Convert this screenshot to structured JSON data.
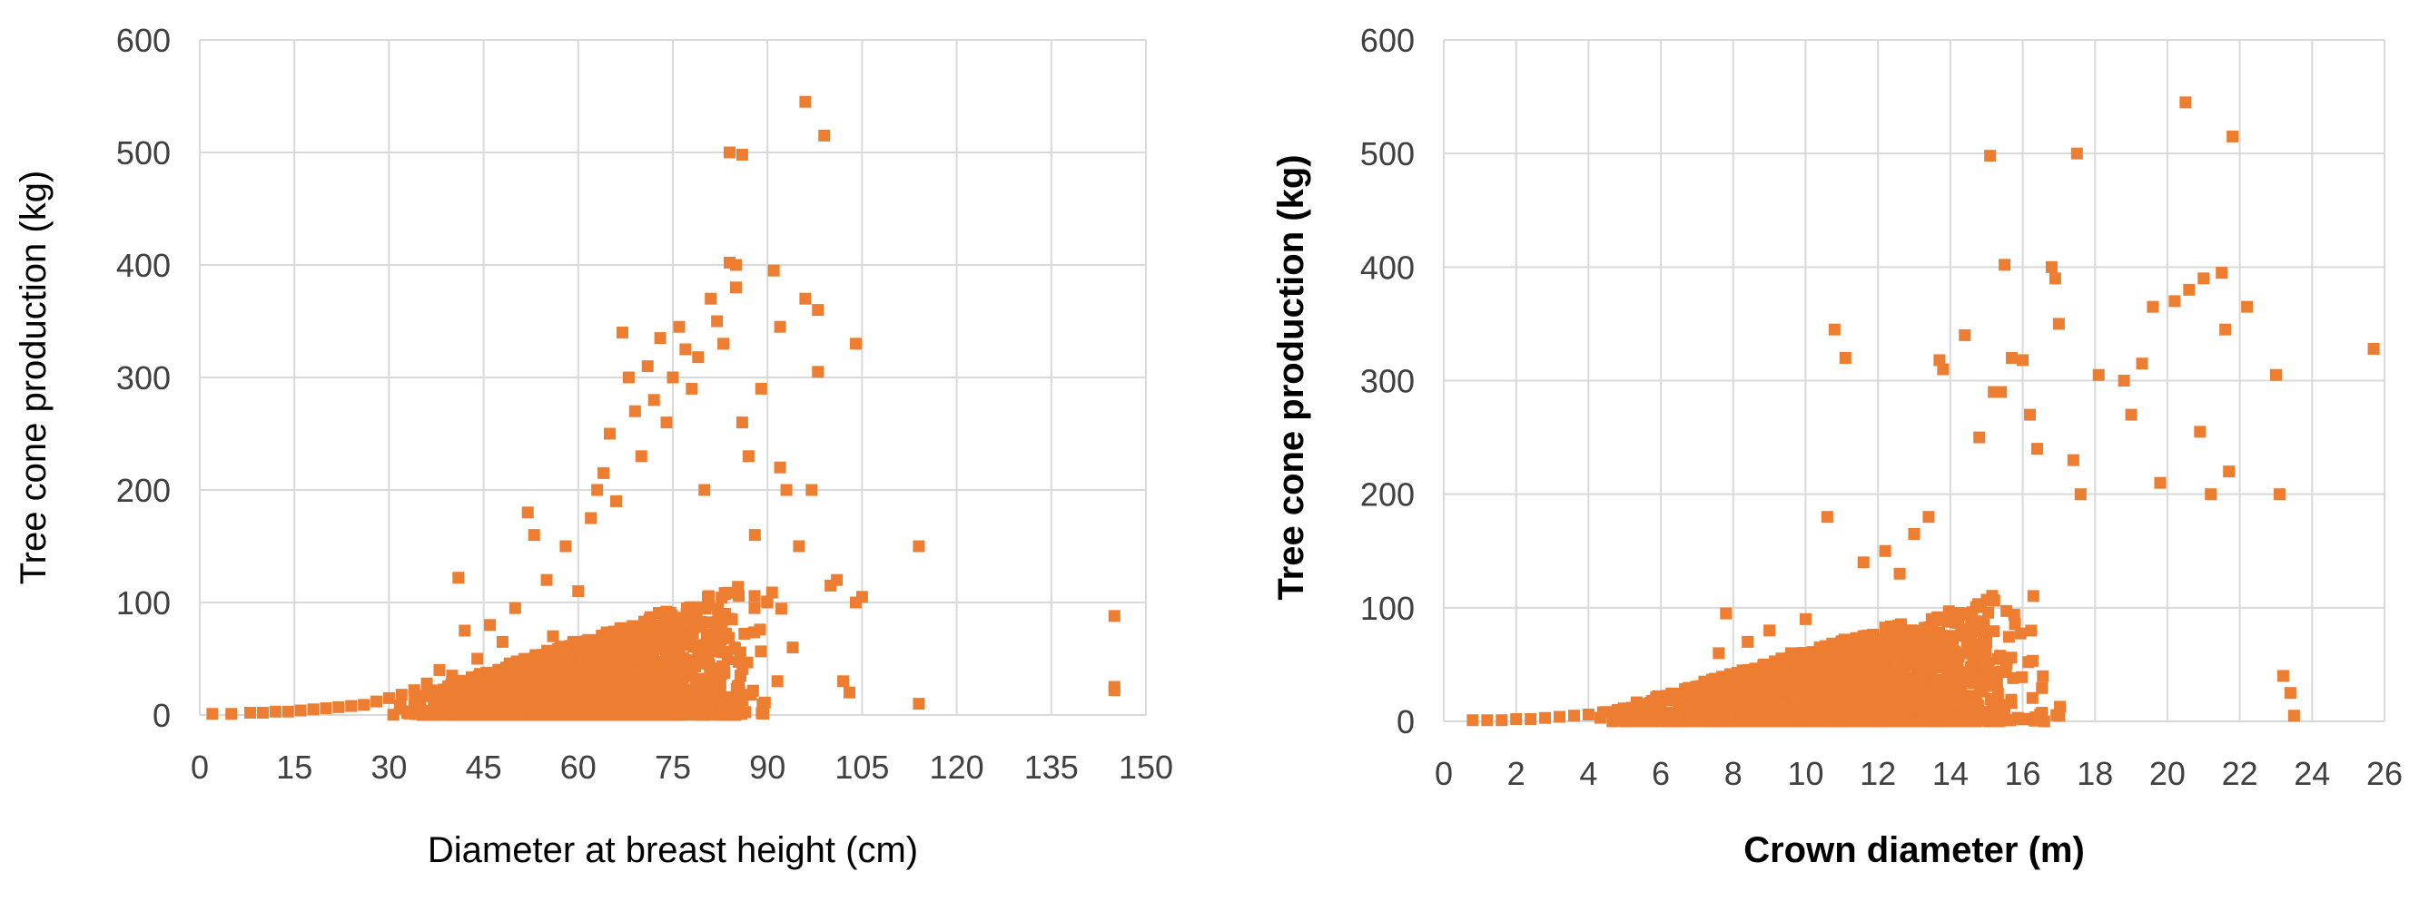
{
  "chart_data": [
    {
      "type": "scatter",
      "xlabel": "Diameter at breast height (cm)",
      "ylabel": "Tree cone production (kg)",
      "xlim": [
        0,
        150
      ],
      "ylim": [
        0,
        600
      ],
      "xticks": [
        "0",
        "15",
        "30",
        "45",
        "60",
        "75",
        "90",
        "105",
        "120",
        "135",
        "150"
      ],
      "yticks": [
        "0",
        "100",
        "200",
        "300",
        "400",
        "500",
        "600"
      ],
      "grid": true,
      "marker_color": "#ED7D31",
      "series": [
        {
          "points": [
            [
              2,
              1
            ],
            [
              5,
              1
            ],
            [
              8,
              2
            ],
            [
              10,
              2
            ],
            [
              12,
              3
            ],
            [
              14,
              3
            ],
            [
              16,
              4
            ],
            [
              18,
              5
            ],
            [
              20,
              6
            ],
            [
              22,
              7
            ],
            [
              24,
              8
            ],
            [
              26,
              9
            ],
            [
              28,
              12
            ],
            [
              30,
              15
            ],
            [
              32,
              18
            ],
            [
              34,
              22
            ],
            [
              36,
              28
            ],
            [
              38,
              40
            ],
            [
              40,
              35
            ],
            [
              41,
              122
            ],
            [
              42,
              75
            ],
            [
              44,
              50
            ],
            [
              46,
              80
            ],
            [
              48,
              65
            ],
            [
              50,
              95
            ],
            [
              52,
              180
            ],
            [
              53,
              160
            ],
            [
              55,
              120
            ],
            [
              56,
              70
            ],
            [
              58,
              150
            ],
            [
              60,
              110
            ],
            [
              62,
              175
            ],
            [
              63,
              200
            ],
            [
              64,
              215
            ],
            [
              65,
              250
            ],
            [
              66,
              190
            ],
            [
              67,
              340
            ],
            [
              68,
              300
            ],
            [
              69,
              270
            ],
            [
              70,
              230
            ],
            [
              71,
              310
            ],
            [
              72,
              280
            ],
            [
              73,
              335
            ],
            [
              74,
              260
            ],
            [
              75,
              300
            ],
            [
              76,
              345
            ],
            [
              77,
              325
            ],
            [
              78,
              290
            ],
            [
              79,
              318
            ],
            [
              80,
              200
            ],
            [
              81,
              370
            ],
            [
              82,
              350
            ],
            [
              83,
              330
            ],
            [
              84,
              402
            ],
            [
              84,
              500
            ],
            [
              85,
              400
            ],
            [
              85,
              380
            ],
            [
              86,
              498
            ],
            [
              86,
              260
            ],
            [
              87,
              230
            ],
            [
              88,
              160
            ],
            [
              89,
              290
            ],
            [
              90,
              100
            ],
            [
              91,
              395
            ],
            [
              92,
              345
            ],
            [
              92,
              220
            ],
            [
              93,
              200
            ],
            [
              94,
              60
            ],
            [
              95,
              150
            ],
            [
              96,
              370
            ],
            [
              96,
              545
            ],
            [
              97,
              200
            ],
            [
              98,
              305
            ],
            [
              98,
              360
            ],
            [
              99,
              515
            ],
            [
              100,
              115
            ],
            [
              101,
              120
            ],
            [
              102,
              30
            ],
            [
              103,
              20
            ],
            [
              104,
              100
            ],
            [
              104,
              330
            ],
            [
              105,
              105
            ],
            [
              114,
              10
            ],
            [
              114,
              150
            ],
            [
              145,
              88
            ],
            [
              145,
              22
            ],
            [
              145,
              25
            ]
          ]
        }
      ]
    },
    {
      "type": "scatter",
      "xlabel": "Crown diameter (m)",
      "ylabel": "Tree cone production (kg)",
      "xlim": [
        0,
        26
      ],
      "ylim": [
        0,
        600
      ],
      "xticks": [
        "0",
        "2",
        "4",
        "6",
        "8",
        "10",
        "12",
        "14",
        "16",
        "18",
        "20",
        "22",
        "24",
        "26"
      ],
      "yticks": [
        "0",
        "100",
        "200",
        "300",
        "400",
        "500",
        "600"
      ],
      "grid": true,
      "marker_color": "#ED7D31",
      "series": [
        {
          "points": [
            [
              0.8,
              1
            ],
            [
              1.2,
              1
            ],
            [
              1.6,
              1
            ],
            [
              2.0,
              2
            ],
            [
              2.4,
              2
            ],
            [
              2.8,
              3
            ],
            [
              3.2,
              4
            ],
            [
              3.6,
              5
            ],
            [
              4.0,
              6
            ],
            [
              4.4,
              8
            ],
            [
              4.8,
              10
            ],
            [
              5.2,
              12
            ],
            [
              5.6,
              14
            ],
            [
              6.0,
              18
            ],
            [
              6.4,
              22
            ],
            [
              6.8,
              28
            ],
            [
              7.2,
              35
            ],
            [
              7.6,
              60
            ],
            [
              7.8,
              95
            ],
            [
              8.4,
              70
            ],
            [
              9.0,
              80
            ],
            [
              9.6,
              60
            ],
            [
              10.0,
              90
            ],
            [
              10.6,
              180
            ],
            [
              10.8,
              345
            ],
            [
              11.1,
              320
            ],
            [
              11.6,
              140
            ],
            [
              12.2,
              150
            ],
            [
              12.6,
              130
            ],
            [
              13.0,
              165
            ],
            [
              13.4,
              180
            ],
            [
              13.7,
              318
            ],
            [
              13.8,
              310
            ],
            [
              14.4,
              340
            ],
            [
              14.8,
              250
            ],
            [
              15.1,
              498
            ],
            [
              15.2,
              290
            ],
            [
              15.4,
              290
            ],
            [
              15.5,
              402
            ],
            [
              15.7,
              320
            ],
            [
              16.0,
              318
            ],
            [
              16.2,
              270
            ],
            [
              16.4,
              240
            ],
            [
              16.8,
              400
            ],
            [
              16.9,
              390
            ],
            [
              17.0,
              350
            ],
            [
              17.4,
              230
            ],
            [
              17.5,
              500
            ],
            [
              17.6,
              200
            ],
            [
              18.1,
              305
            ],
            [
              18.8,
              300
            ],
            [
              19.0,
              270
            ],
            [
              19.3,
              315
            ],
            [
              19.6,
              365
            ],
            [
              19.8,
              210
            ],
            [
              20.2,
              370
            ],
            [
              20.5,
              545
            ],
            [
              20.6,
              380
            ],
            [
              20.9,
              255
            ],
            [
              21.0,
              390
            ],
            [
              21.2,
              200
            ],
            [
              21.5,
              395
            ],
            [
              21.6,
              345
            ],
            [
              21.7,
              220
            ],
            [
              21.8,
              515
            ],
            [
              22.2,
              365
            ],
            [
              23.0,
              305
            ],
            [
              23.1,
              200
            ],
            [
              23.2,
              40
            ],
            [
              23.4,
              25
            ],
            [
              23.5,
              5
            ],
            [
              25.7,
              328
            ]
          ]
        }
      ]
    }
  ]
}
